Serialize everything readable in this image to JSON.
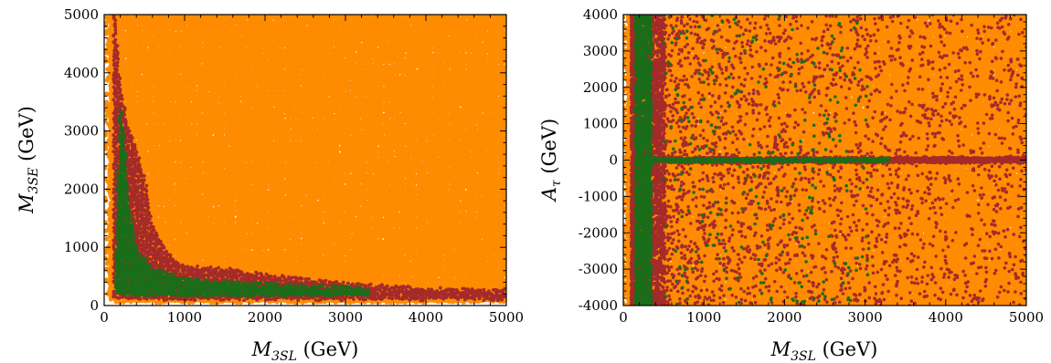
{
  "colors": {
    "orange": "#ff8c00",
    "brown": "#a52a2a",
    "green": "#196e19",
    "frame": "#000000",
    "background": "#ffffff"
  },
  "chart_data": [
    {
      "type": "scatter",
      "title": "",
      "xlabel": "M_3SL (GeV)",
      "ylabel": "M_3SE (GeV)",
      "xlabel_parts": {
        "symbol": "M",
        "sub": "3SL",
        "unit": " (GeV)"
      },
      "ylabel_parts": {
        "symbol": "M",
        "sub": "3SE",
        "unit": " (GeV)"
      },
      "xlim": [
        0,
        5000
      ],
      "ylim": [
        0,
        5000
      ],
      "xticks": [
        "0",
        "1000",
        "2000",
        "3000",
        "4000",
        "5000"
      ],
      "yticks": [
        "0",
        "1000",
        "2000",
        "3000",
        "4000",
        "5000"
      ],
      "grid": false,
      "legend": "none",
      "series": [
        {
          "color": "#ff8c00",
          "description": "all points: fill the whole plane from x≈100, y≈100 up to 5000"
        },
        {
          "color": "#a52a2a",
          "region_x": [
            130,
            200,
            300,
            400,
            500,
            600,
            800,
            1000,
            1500,
            2000,
            3000,
            4000,
            5000
          ],
          "region_upper_y": [
            4900,
            3700,
            3000,
            2600,
            2100,
            1300,
            800,
            600,
            560,
            450,
            300,
            220,
            180
          ],
          "region_lower_y": [
            120,
            110,
            100,
            100,
            100,
            100,
            100,
            100,
            100,
            100,
            100,
            100,
            100
          ]
        },
        {
          "color": "#196e19",
          "region_x": [
            150,
            200,
            250,
            300,
            400,
            600,
            1000,
            1500,
            2000,
            2500,
            3000,
            3300
          ],
          "region_upper_y": [
            900,
            3350,
            2800,
            1700,
            900,
            550,
            380,
            330,
            300,
            260,
            240,
            220
          ],
          "region_lower_y": [
            220,
            200,
            190,
            180,
            170,
            165,
            160,
            160,
            160,
            165,
            170,
            180
          ]
        }
      ]
    },
    {
      "type": "scatter",
      "title": "",
      "xlabel": "M_3SL (GeV)",
      "ylabel": "A_τ (GeV)",
      "xlabel_parts": {
        "symbol": "M",
        "sub": "3SL",
        "unit": " (GeV)"
      },
      "ylabel_parts": {
        "symbol": "A",
        "sub": "τ",
        "unit": " (GeV)"
      },
      "xlim": [
        0,
        5000
      ],
      "ylim": [
        -4000,
        4000
      ],
      "xticks": [
        "0",
        "1000",
        "2000",
        "3000",
        "4000",
        "5000"
      ],
      "yticks": [
        "-4000",
        "-3000",
        "-2000",
        "-1000",
        "0",
        "1000",
        "2000",
        "3000",
        "4000"
      ],
      "grid": false,
      "legend": "none",
      "series": [
        {
          "color": "#ff8c00",
          "description": "all points: fill the whole plane from x≈80"
        },
        {
          "color": "#a52a2a",
          "description": "dense band x≈100–500 spanning full y range; scattered points elsewhere, denser for x<3000; horizontal band along y≈0 to x=5000"
        },
        {
          "color": "#196e19",
          "description": "dense vertical band x≈150–350 spanning full y range; horizontal band along y≈0 to x≈3300; sparse points x≈500–3000"
        }
      ]
    }
  ]
}
